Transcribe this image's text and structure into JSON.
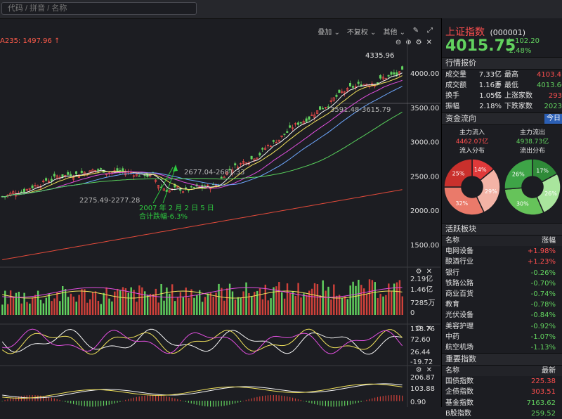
{
  "search": {
    "placeholder": "代码 / 拼音 / 名称"
  },
  "toolbar": {
    "overlay": "叠加 ⌄",
    "adjust": "不复权 ⌄",
    "other": "其他 ⌄"
  },
  "main_chart": {
    "ma_legend": "A235: 1497.96 ↑",
    "y_ticks": [
      "4000.00",
      "3500.00",
      "3000.00",
      "2500.00",
      "2000.00",
      "1500.00"
    ],
    "y_values": [
      4000,
      3500,
      3000,
      2500,
      2000,
      1500
    ],
    "high_label": "4335.96",
    "range_label_1": "3591.48-3615.79",
    "range_label_2": "2677.04-2681.33",
    "range_label_3": "2275.49-2277.28",
    "annotation_line1": "2007 年 2 月 2 日 5 日",
    "annotation_line2": "合计跌幅-6.3%"
  },
  "volume_pane": {
    "ticks": [
      "2.19亿",
      "1.46亿",
      "7285万",
      "0"
    ]
  },
  "indicator_pane": {
    "ticks": [
      "118.76",
      "72.60",
      "26.44",
      "-19.72"
    ]
  },
  "macd_pane": {
    "ticks": [
      "206.87",
      "103.88",
      "0.90"
    ]
  },
  "sidebar": {
    "name": "上证指数",
    "code": "(000001)",
    "price": "4015.75",
    "change": "↓-102.20",
    "change_pct": "-2.48%",
    "quote_title": "行情报价",
    "quote_rows": [
      {
        "l1": "成交量",
        "v1": "7.33亿手",
        "l2": "最高",
        "v2": "4103.41"
      },
      {
        "l1": "成交额",
        "v1": "1.16万亿",
        "l2": "最低",
        "v2": "4013.66"
      },
      {
        "l1": "换手",
        "v1": "1.05%",
        "l2": "上涨家数",
        "v2": "293"
      },
      {
        "l1": "振幅",
        "v1": "2.18%",
        "l2": "下跌家数",
        "v2": "2023"
      }
    ],
    "flow_title": "资金流向",
    "flow_today": "今日",
    "main_in_label": "主力流入",
    "main_in_value": "4462.07亿",
    "main_out_label": "主力流出",
    "main_out_value": "4938.73亿",
    "in_dist_label": "流入分布",
    "out_dist_label": "流出分布",
    "in_pie": [
      {
        "label": "14%",
        "value": 14,
        "color": "#e0393a"
      },
      {
        "label": "29%",
        "value": 29,
        "color": "#f3b3a6"
      },
      {
        "label": "32%",
        "value": 32,
        "color": "#ea7a6a"
      },
      {
        "label": "25%",
        "value": 25,
        "color": "#c9302c"
      }
    ],
    "out_pie": [
      {
        "label": "17%",
        "value": 17,
        "color": "#2f8a38"
      },
      {
        "label": "26%",
        "value": 26,
        "color": "#a9e59d"
      },
      {
        "label": "30%",
        "value": 30,
        "color": "#66c35a"
      },
      {
        "label": "26%",
        "value": 26,
        "color": "#3ea447"
      }
    ],
    "sectors_title": "活跃板块",
    "sectors_header": {
      "name": "名称",
      "change": "涨幅"
    },
    "sectors": [
      {
        "name": "电网设备",
        "change": "+1.98%"
      },
      {
        "name": "酿酒行业",
        "change": "+1.23%"
      },
      {
        "name": "银行",
        "change": "-0.26%"
      },
      {
        "name": "铁路公路",
        "change": "-0.70%"
      },
      {
        "name": "商业百货",
        "change": "-0.74%"
      },
      {
        "name": "教育",
        "change": "-0.78%"
      },
      {
        "name": "光伏设备",
        "change": "-0.84%"
      },
      {
        "name": "美容护理",
        "change": "-0.92%"
      },
      {
        "name": "中药",
        "change": "-1.07%"
      },
      {
        "name": "航空机场",
        "change": "-1.13%"
      }
    ],
    "index_title": "重要指数",
    "index_header": {
      "name": "名称",
      "latest": "最新"
    },
    "indices": [
      {
        "name": "国债指数",
        "value": "225.38"
      },
      {
        "name": "企债指数",
        "value": "303.51"
      },
      {
        "name": "基金指数",
        "value": "7163.62"
      },
      {
        "name": "B股指数",
        "value": "259.52"
      }
    ]
  },
  "colors": {
    "up": "#ff4f4f",
    "down": "#62d25f",
    "bg": "#1c1d22"
  }
}
